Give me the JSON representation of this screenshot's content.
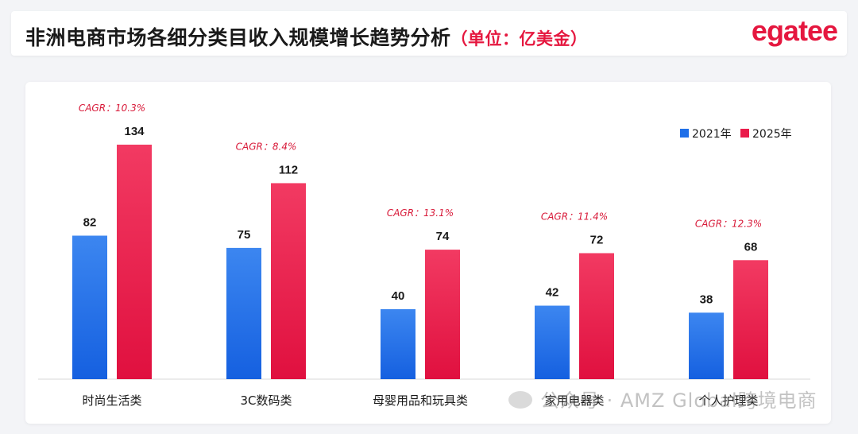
{
  "header": {
    "title": "非洲电商市场各细分类目收入规模增长趋势分析",
    "unit": "（单位：亿美金）",
    "logo": "egatee"
  },
  "colors": {
    "series_2021": "#1f6fe8",
    "series_2025": "#ea1b4b",
    "cagr": "#d81b3a"
  },
  "chart_data": {
    "type": "bar",
    "categories": [
      "时尚生活类",
      "3C数码类",
      "母婴用品和玩具类",
      "家用电器类",
      "个人护理类"
    ],
    "series": [
      {
        "name": "2021年",
        "values": [
          82,
          75,
          40,
          42,
          38
        ]
      },
      {
        "name": "2025年",
        "values": [
          134,
          112,
          74,
          72,
          68
        ]
      }
    ],
    "cagr": [
      "CAGR：10.3%",
      "CAGR：8.4%",
      "CAGR：13.1%",
      "CAGR：11.4%",
      "CAGR：12.3%"
    ],
    "ylim": [
      0,
      150
    ],
    "grid": false,
    "legend": "top-right"
  },
  "watermark": "公众号 · AMZ Global跨境电商"
}
